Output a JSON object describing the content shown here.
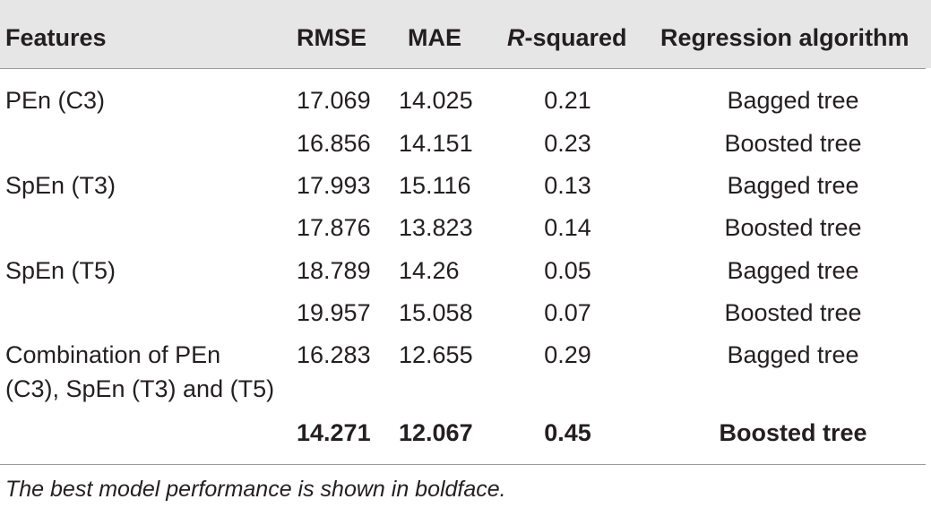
{
  "table": {
    "headers": {
      "features": "Features",
      "rmse": "RMSE",
      "mae": "MAE",
      "r2_italic": "R",
      "r2_rest": "-squared",
      "algorithm": "Regression algorithm"
    },
    "rows": [
      {
        "features": "PEn (C3)",
        "rmse": "17.069",
        "mae": "14.025",
        "r2": "0.21",
        "algorithm": "Bagged tree"
      },
      {
        "features": "",
        "rmse": "16.856",
        "mae": "14.151",
        "r2": "0.23",
        "algorithm": "Boosted tree"
      },
      {
        "features": "SpEn (T3)",
        "rmse": "17.993",
        "mae": "15.116",
        "r2": "0.13",
        "algorithm": "Bagged tree"
      },
      {
        "features": "",
        "rmse": "17.876",
        "mae": "13.823",
        "r2": "0.14",
        "algorithm": "Boosted tree"
      },
      {
        "features": "SpEn (T5)",
        "rmse": "18.789",
        "mae": "14.26",
        "r2": "0.05",
        "algorithm": "Bagged tree"
      },
      {
        "features": "",
        "rmse": "19.957",
        "mae": "15.058",
        "r2": "0.07",
        "algorithm": "Boosted tree"
      },
      {
        "features_line1": "Combination of PEn",
        "features_line2": "(C3), SpEn (T3) and (T5)",
        "rmse": "16.283",
        "mae": "12.655",
        "r2": "0.29",
        "algorithm": "Bagged tree"
      },
      {
        "features": "",
        "rmse": "14.271",
        "mae": "12.067",
        "r2": "0.45",
        "algorithm": "Boosted tree"
      }
    ],
    "footnote": "The best model performance is shown in boldface."
  }
}
